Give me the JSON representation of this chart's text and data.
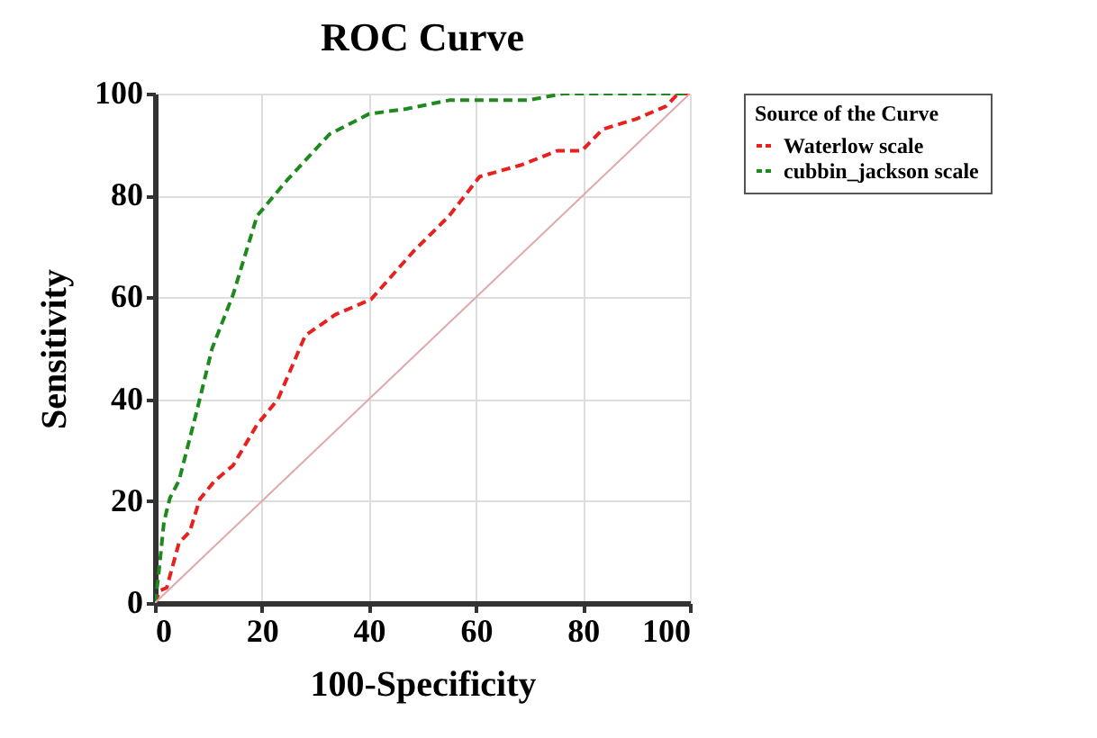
{
  "chart_data": {
    "type": "line",
    "title": "ROC Curve",
    "xlabel": "100-Specificity",
    "ylabel": "Sensitivity",
    "legend_title": "Source of the Curve",
    "xlim": [
      0,
      100
    ],
    "ylim": [
      0,
      100
    ],
    "xticks": [
      0,
      20,
      40,
      60,
      80,
      100
    ],
    "yticks": [
      0,
      20,
      40,
      60,
      80,
      100
    ],
    "grid": true,
    "legend": "top right",
    "marker": "none",
    "series": [
      {
        "name": "Waterlow  scale",
        "color": "#e8201e",
        "line_style": "dashed",
        "x": [
          0,
          0.9,
          2.2,
          4.5,
          6.5,
          8.4,
          11.2,
          14.6,
          19.1,
          23,
          28.1,
          33.7,
          40.4,
          48.3,
          55,
          60.7,
          68.5,
          75.3,
          79.8,
          83.7,
          89.9,
          95.5,
          97.8,
          100
        ],
        "values": [
          0,
          2.4,
          3,
          11.8,
          14,
          20.4,
          24,
          27,
          35,
          40,
          52.5,
          56.6,
          59.6,
          69,
          76,
          83.7,
          86,
          88.8,
          88.8,
          93,
          95,
          97.5,
          100,
          100
        ]
      },
      {
        "name": "cubbin_jackson scale",
        "color": "#1e8a1e",
        "line_style": "dashed",
        "x": [
          0,
          0.6,
          1.7,
          2.8,
          4.5,
          7.9,
          10.7,
          14.6,
          19.1,
          24.7,
          32.6,
          40,
          47,
          55,
          69.7,
          76.4,
          100
        ],
        "values": [
          0,
          4.7,
          16,
          20.6,
          24,
          38,
          50,
          60.5,
          76,
          83,
          92,
          96,
          97,
          98.7,
          98.7,
          100,
          100
        ]
      },
      {
        "color": "#e0a8a8",
        "line_style": "solid",
        "x": [
          0,
          100
        ],
        "values": [
          0,
          100
        ]
      }
    ]
  }
}
